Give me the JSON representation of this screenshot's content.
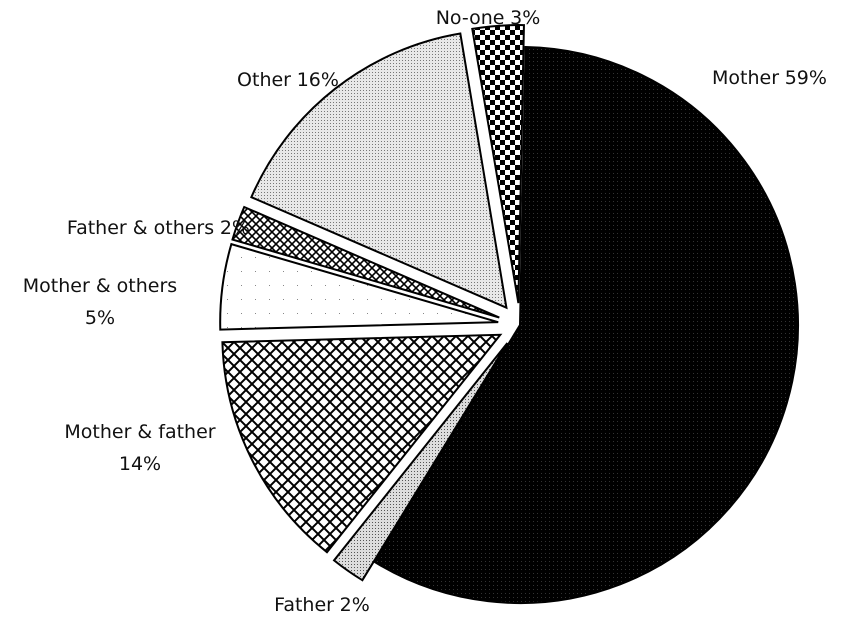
{
  "chart_data": {
    "type": "pie",
    "categories": [
      "Mother",
      "Father",
      "Mother & father",
      "Mother & others",
      "Father & others",
      "Other",
      "No-one"
    ],
    "values": [
      59,
      2,
      14,
      5,
      2,
      16,
      3
    ],
    "value_labels": [
      "59%",
      "2%",
      "14%",
      "5%",
      "2%",
      "16%",
      "3%"
    ]
  }
}
